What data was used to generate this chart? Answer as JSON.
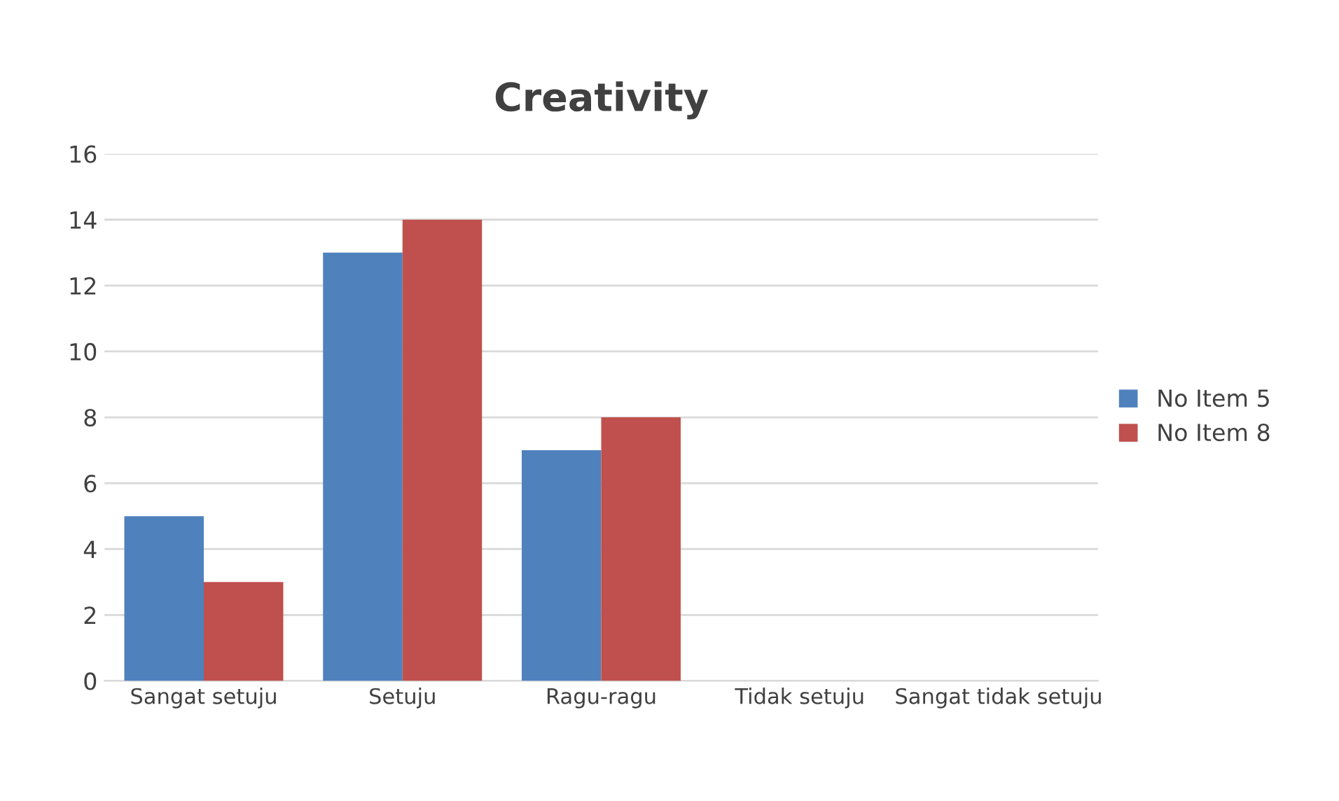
{
  "chart_data": {
    "type": "bar",
    "title": "Creativity",
    "categories": [
      "Sangat setuju",
      "Setuju",
      "Ragu-ragu",
      "Tidak setuju",
      "Sangat tidak setuju"
    ],
    "series": [
      {
        "name": "No Item 5",
        "color": "#4f81bd",
        "values": [
          5,
          13,
          7,
          0,
          0
        ]
      },
      {
        "name": "No Item 8",
        "color": "#c0504d",
        "values": [
          3,
          14,
          8,
          0,
          0
        ]
      }
    ],
    "ylim": [
      0,
      16
    ],
    "yticks": [
      0,
      2,
      4,
      6,
      8,
      10,
      12,
      14,
      16
    ],
    "grid": "y",
    "legend": "right"
  }
}
